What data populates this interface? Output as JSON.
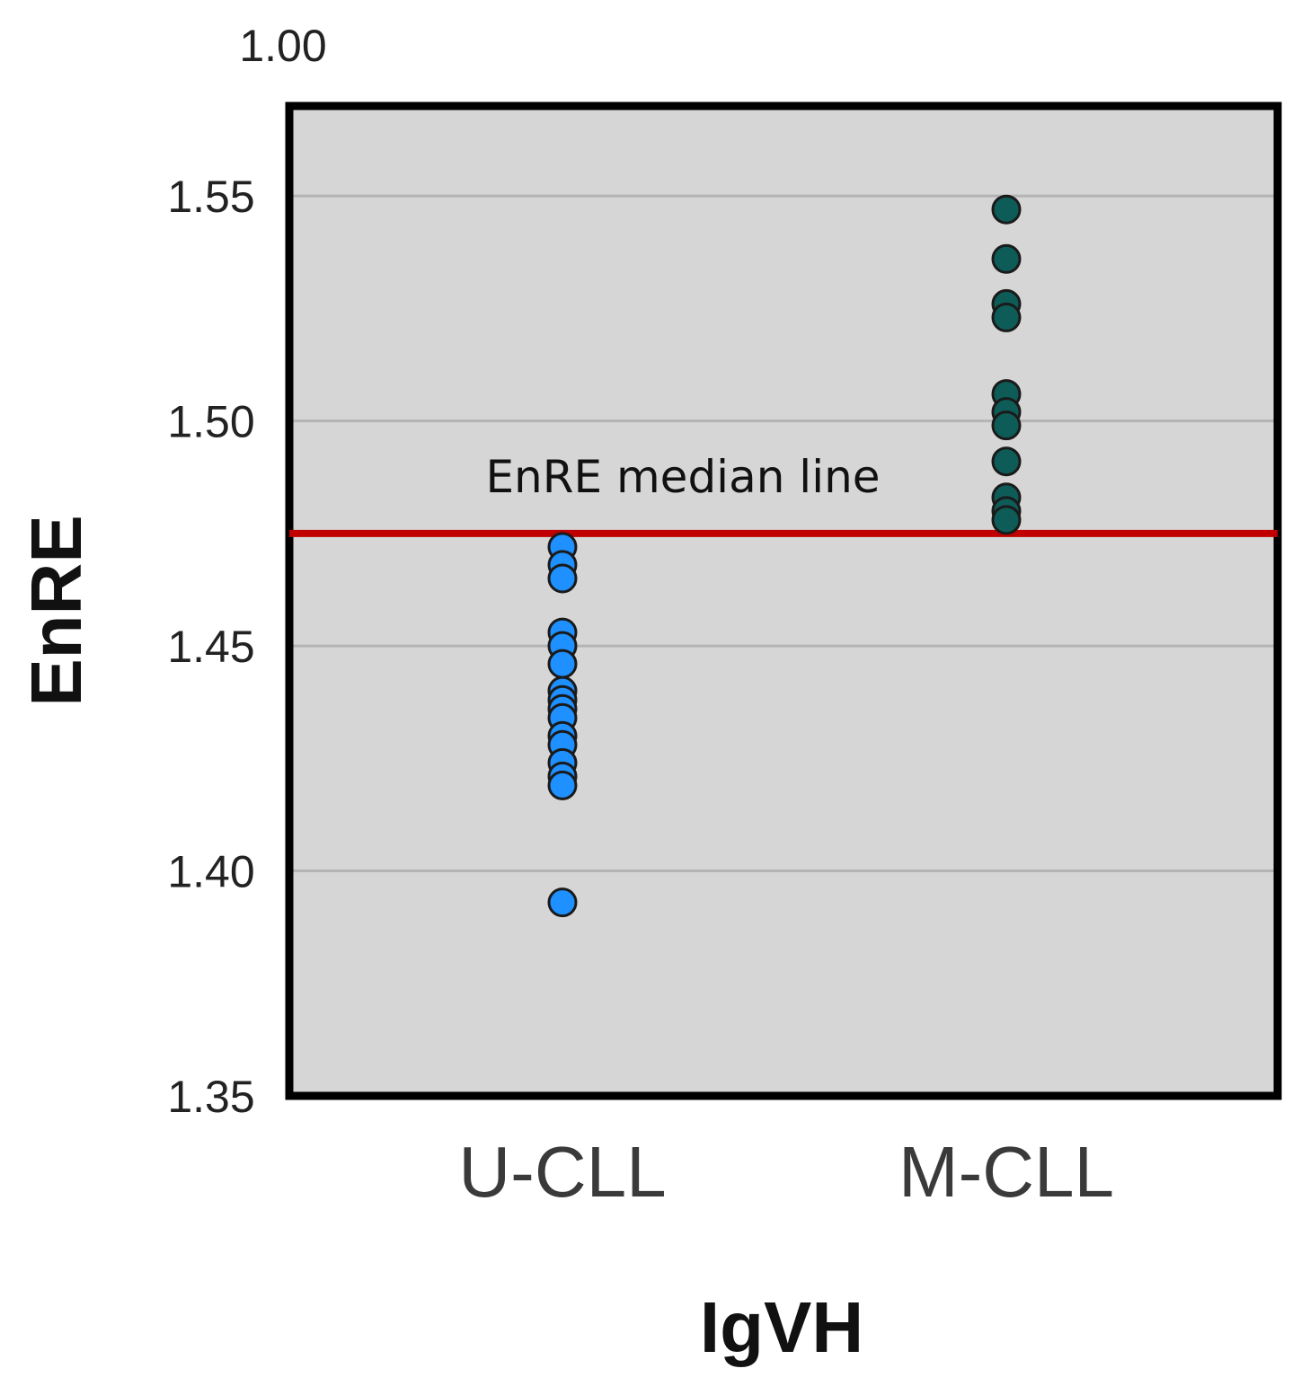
{
  "chart_data": {
    "type": "scatter",
    "xlabel": "IgVH",
    "ylabel": "EnRE",
    "categories": [
      "U-CLL",
      "M-CLL"
    ],
    "ylim": [
      1.35,
      1.57
    ],
    "yticks": [
      1.35,
      1.4,
      1.45,
      1.5,
      1.55
    ],
    "ytick_labels": [
      "1.35",
      "1.40",
      "1.45",
      "1.50",
      "1.55"
    ],
    "top_label": "1.00",
    "grid": true,
    "series": [
      {
        "category": "U-CLL",
        "color": "#1e90ff",
        "values": [
          1.472,
          1.468,
          1.465,
          1.453,
          1.45,
          1.446,
          1.44,
          1.438,
          1.436,
          1.434,
          1.43,
          1.428,
          1.424,
          1.421,
          1.419,
          1.393
        ]
      },
      {
        "category": "M-CLL",
        "color": "#0e5c57",
        "values": [
          1.547,
          1.536,
          1.526,
          1.523,
          1.506,
          1.502,
          1.499,
          1.491,
          1.483,
          1.48,
          1.478
        ]
      }
    ],
    "reference_line": {
      "value": 1.475,
      "label": "EnRE median line",
      "color": "#c00000"
    }
  },
  "colors": {
    "plot_background": "#d6d6d6",
    "gridline": "#b4b4b4",
    "frame": "#000000"
  }
}
